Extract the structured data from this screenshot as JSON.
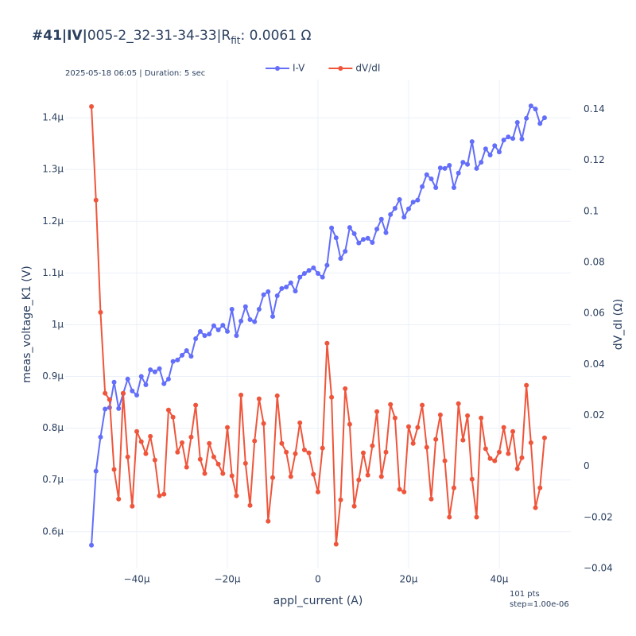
{
  "chart_data": {
    "type": "line",
    "title": {
      "bold": "#41|IV|",
      "main": "005-2_32-31-34-33|R",
      "sub": "fit",
      "rest": ": 0.0061 Ω"
    },
    "subtitle": "2025-05-18 06:05 | Duration: 5 sec",
    "annotations": [
      "101 pts",
      "step=1.00e-06"
    ],
    "x_label": "appl_current (A)",
    "y_label": "meas_voltage_K1 (V)",
    "y2_label": "dV_dI (Ω)",
    "x": [
      -5e-05,
      -4.9e-05,
      -4.8e-05,
      -4.7e-05,
      -4.6e-05,
      -4.5e-05,
      -4.4e-05,
      -4.3e-05,
      -4.2e-05,
      -4.1e-05,
      -4e-05,
      -3.9e-05,
      -3.8e-05,
      -3.7e-05,
      -3.6e-05,
      -3.5e-05,
      -3.4e-05,
      -3.3e-05,
      -3.2e-05,
      -3.1e-05,
      -3e-05,
      -2.9e-05,
      -2.8e-05,
      -2.7e-05,
      -2.6e-05,
      -2.5e-05,
      -2.4e-05,
      -2.3e-05,
      -2.2e-05,
      -2.1e-05,
      -2e-05,
      -1.9e-05,
      -1.8e-05,
      -1.7e-05,
      -1.6e-05,
      -1.5e-05,
      -1.4e-05,
      -1.3e-05,
      -1.2e-05,
      -1.1e-05,
      -1e-05,
      -9e-06,
      -8e-06,
      -7e-06,
      -6e-06,
      -5e-06,
      -4e-06,
      -3e-06,
      -2e-06,
      -1e-06,
      0,
      1e-06,
      2e-06,
      3e-06,
      4e-06,
      5e-06,
      6e-06,
      7e-06,
      8e-06,
      9e-06,
      1e-05,
      1.1e-05,
      1.2e-05,
      1.3e-05,
      1.4e-05,
      1.5e-05,
      1.6e-05,
      1.7e-05,
      1.8e-05,
      1.9e-05,
      2e-05,
      2.1e-05,
      2.2e-05,
      2.3e-05,
      2.4e-05,
      2.5e-05,
      2.6e-05,
      2.7e-05,
      2.8e-05,
      2.9e-05,
      3e-05,
      3.1e-05,
      3.2e-05,
      3.3e-05,
      3.4e-05,
      3.5e-05,
      3.6e-05,
      3.7e-05,
      3.8e-05,
      3.9e-05,
      4e-05,
      4.1e-05,
      4.2e-05,
      4.3e-05,
      4.4e-05,
      4.5e-05,
      4.6e-05,
      4.7e-05,
      4.8e-05,
      4.9e-05,
      5e-05
    ],
    "series": [
      {
        "name": "I-V",
        "color": "#636efa",
        "axis": "y",
        "values": [
          5.74e-07,
          7.17e-07,
          7.83e-07,
          8.37e-07,
          8.4e-07,
          8.89e-07,
          8.38e-07,
          8.67e-07,
          8.95e-07,
          8.72e-07,
          8.64e-07,
          9e-07,
          8.84e-07,
          9.13e-07,
          9.09e-07,
          9.15e-07,
          8.86e-07,
          8.95e-07,
          9.29e-07,
          9.32e-07,
          9.41e-07,
          9.5e-07,
          9.39e-07,
          9.73e-07,
          9.87e-07,
          9.79e-07,
          9.82e-07,
          9.98e-07,
          9.9e-07,
          9.99e-07,
          9.87e-07,
          1.03e-06,
          9.79e-07,
          1.007e-06,
          1.035e-06,
          1.01e-06,
          1.006e-06,
          1.03e-06,
          1.058e-06,
          1.064e-06,
          1.016e-06,
          1.056e-06,
          1.07e-06,
          1.073e-06,
          1.081e-06,
          1.065e-06,
          1.092e-06,
          1.099e-06,
          1.105e-06,
          1.11e-06,
          1.099e-06,
          1.092e-06,
          1.115e-06,
          1.187e-06,
          1.168e-06,
          1.128e-06,
          1.142e-06,
          1.188e-06,
          1.176e-06,
          1.158e-06,
          1.165e-06,
          1.167e-06,
          1.159e-06,
          1.185e-06,
          1.204e-06,
          1.178e-06,
          1.213e-06,
          1.225e-06,
          1.242e-06,
          1.208e-06,
          1.224e-06,
          1.237e-06,
          1.241e-06,
          1.267e-06,
          1.29e-06,
          1.282e-06,
          1.265e-06,
          1.303e-06,
          1.302e-06,
          1.308e-06,
          1.265e-06,
          1.293e-06,
          1.314e-06,
          1.31e-06,
          1.354e-06,
          1.302e-06,
          1.314e-06,
          1.34e-06,
          1.328e-06,
          1.346e-06,
          1.334e-06,
          1.357e-06,
          1.363e-06,
          1.36e-06,
          1.391e-06,
          1.359e-06,
          1.399e-06,
          1.423e-06,
          1.417e-06,
          1.389e-06,
          1.4e-06
        ]
      },
      {
        "name": "dV/dI",
        "color": "#ef553b",
        "axis": "y2",
        "values": [
          0.1411,
          0.1044,
          0.0604,
          0.0287,
          0.0262,
          -0.0012,
          -0.0128,
          0.0287,
          0.0037,
          -0.0156,
          0.0137,
          0.0097,
          0.005,
          0.0118,
          0.0025,
          -0.0115,
          -0.0109,
          0.0221,
          0.0193,
          0.0056,
          0.0093,
          -0.0003,
          0.0115,
          0.024,
          0.0028,
          -0.0028,
          0.009,
          0.0037,
          0.0009,
          -0.0028,
          0.0153,
          -0.0037,
          -0.0115,
          0.028,
          0.0012,
          -0.0153,
          0.01,
          0.0265,
          0.0168,
          -0.0215,
          -0.0044,
          0.0277,
          0.009,
          0.0056,
          -0.004,
          0.005,
          0.0171,
          0.0065,
          0.0053,
          -0.0031,
          -0.01,
          0.0072,
          0.0483,
          0.0271,
          -0.0305,
          -0.0131,
          0.0305,
          0.0165,
          -0.0156,
          -0.0053,
          0.0053,
          -0.0034,
          0.0081,
          0.0215,
          -0.004,
          0.0056,
          0.0243,
          0.019,
          -0.009,
          -0.01,
          0.0156,
          0.009,
          0.0153,
          0.024,
          0.0075,
          -0.0128,
          0.0106,
          0.0202,
          0.0022,
          -0.0199,
          -0.0084,
          0.0246,
          0.0103,
          0.0199,
          -0.005,
          -0.0199,
          0.019,
          0.0069,
          0.0031,
          0.0022,
          0.0056,
          0.0153,
          0.005,
          0.0137,
          -0.0009,
          0.0034,
          0.0318,
          0.0093,
          -0.0162,
          -0.0084,
          0.0112
        ]
      }
    ],
    "xlim": [
      -5.58e-05,
      5.58e-05
    ],
    "xticks": [
      {
        "value": -4e-05,
        "label": "−40µ"
      },
      {
        "value": -2e-05,
        "label": "−20µ"
      },
      0,
      {
        "value": 2e-05,
        "label": "20µ"
      },
      {
        "value": 4e-05,
        "label": "40µ"
      }
    ],
    "ylim": [
      5.29e-07,
      1.474e-06
    ],
    "yticks": [
      {
        "value": 6e-07,
        "label": "0.6µ"
      },
      {
        "value": 7e-07,
        "label": "0.7µ"
      },
      {
        "value": 8e-07,
        "label": "0.8µ"
      },
      {
        "value": 9e-07,
        "label": "0.9µ"
      },
      {
        "value": 1e-06,
        "label": "1µ"
      },
      {
        "value": 1.1e-06,
        "label": "1.1µ"
      },
      {
        "value": 1.2e-06,
        "label": "1.2µ"
      },
      {
        "value": 1.3e-06,
        "label": "1.3µ"
      },
      {
        "value": 1.4e-06,
        "label": "1.4µ"
      }
    ],
    "y2lim": [
      -0.04,
      0.1517
    ],
    "y2ticks": [
      {
        "value": -0.04,
        "label": "−0.04"
      },
      {
        "value": -0.02,
        "label": "−0.02"
      },
      0,
      0.02,
      0.04,
      0.06,
      0.08,
      0.1,
      0.12,
      0.14
    ],
    "grid": true
  }
}
